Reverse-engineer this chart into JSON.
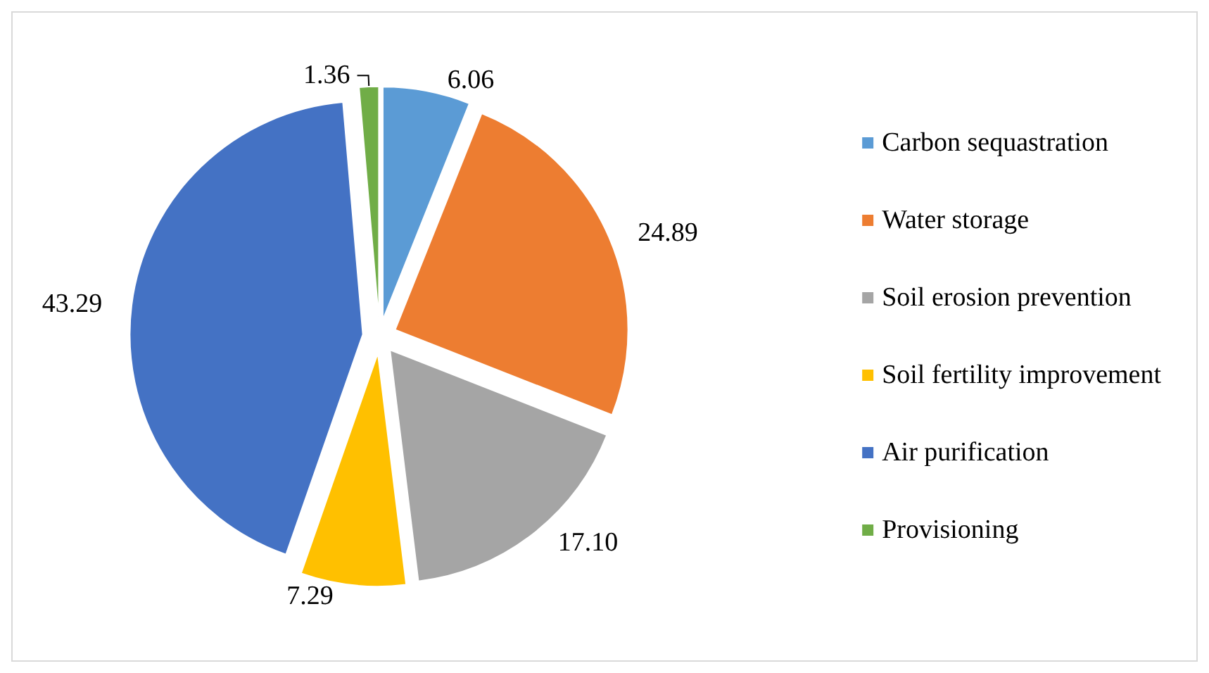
{
  "chart_data": {
    "type": "pie",
    "categories": [
      "Carbon sequastration",
      "Water storage",
      "Soil erosion prevention",
      "Soil fertility improvement",
      "Air purification",
      "Provisioning"
    ],
    "values": [
      6.06,
      24.89,
      17.1,
      7.29,
      43.29,
      1.36
    ],
    "value_labels": [
      "6.06",
      "24.89",
      "17.10",
      "7.29",
      "43.29",
      "1.36"
    ],
    "colors": [
      "#5b9bd5",
      "#ed7d31",
      "#a5a5a5",
      "#ffc000",
      "#4472c4",
      "#70ad47"
    ],
    "legend": "right"
  }
}
